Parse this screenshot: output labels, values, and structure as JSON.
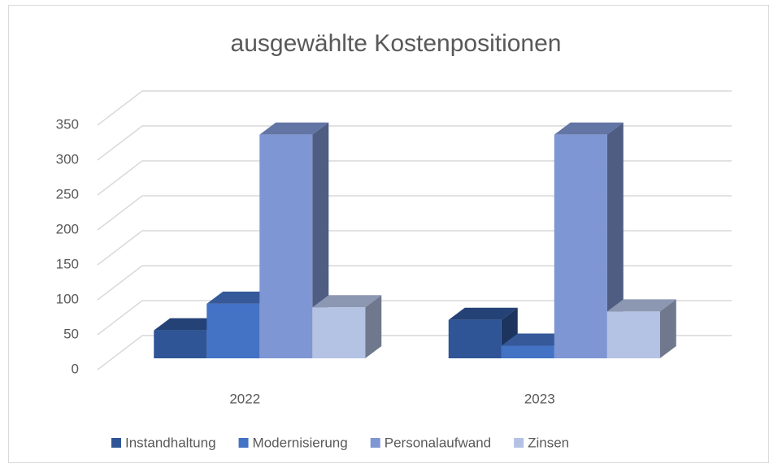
{
  "chart_data": {
    "type": "bar3d",
    "title": "ausgewählte Kostenpositionen",
    "categories": [
      "2022",
      "2023"
    ],
    "series": [
      {
        "name": "Instandhaltung",
        "color": "#2f5597",
        "values": [
          40,
          55
        ]
      },
      {
        "name": "Modernisierung",
        "color": "#4472c4",
        "values": [
          78,
          18
        ]
      },
      {
        "name": "Personalaufwand",
        "color": "#7f96d4",
        "values": [
          320,
          320
        ]
      },
      {
        "name": "Zinsen",
        "color": "#b4c2e4",
        "values": [
          73,
          67
        ]
      }
    ],
    "ylim": [
      0,
      350
    ],
    "yticks": [
      0,
      50,
      100,
      150,
      200,
      250,
      300,
      350
    ],
    "grid": true,
    "legend": "bottom"
  }
}
